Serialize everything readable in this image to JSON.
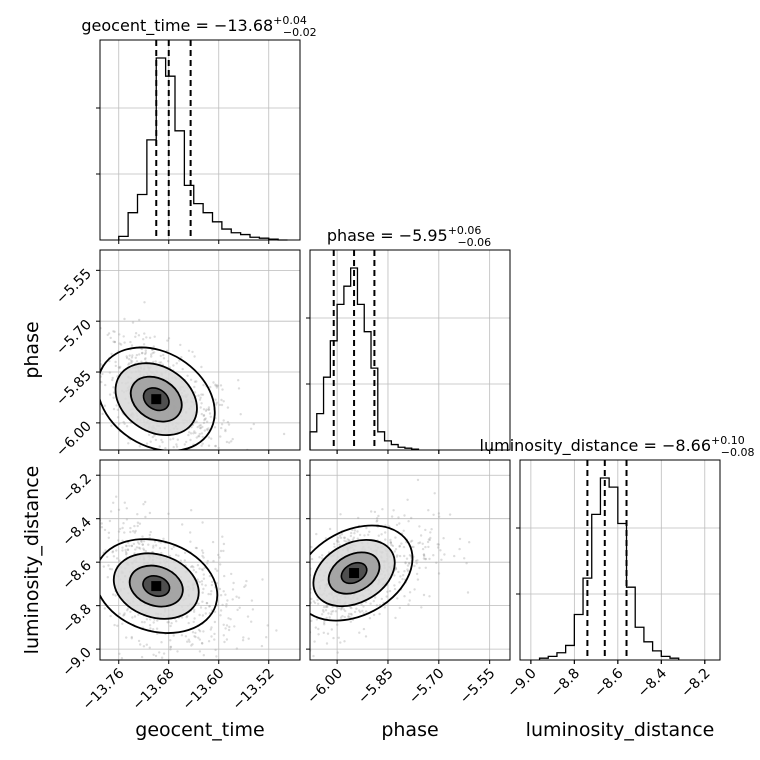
{
  "chart_data": {
    "type": "corner",
    "parameters": [
      "geocent_time",
      "phase",
      "luminosity_distance"
    ],
    "titles": [
      {
        "name": "geocent_time",
        "median": "−13.68",
        "plus": "+0.04",
        "minus": "−0.02"
      },
      {
        "name": "phase",
        "median": "−5.95",
        "plus": "+0.06",
        "minus": "−0.06"
      },
      {
        "name": "luminosity_distance",
        "median": "−8.66",
        "plus": "+0.10",
        "minus": "−0.08"
      }
    ],
    "axis_labels": {
      "x": [
        "geocent_time",
        "phase",
        "luminosity_distance"
      ],
      "y": [
        "phase",
        "luminosity_distance"
      ]
    },
    "ranges": [
      [
        -13.79,
        -13.47
      ],
      [
        -6.08,
        -5.49
      ],
      [
        -9.05,
        -8.13
      ]
    ],
    "ticks": {
      "geocent_time": {
        "values": [
          -13.76,
          -13.68,
          -13.6,
          -13.52
        ],
        "labels": [
          "−13.76",
          "−13.68",
          "−13.60",
          "−13.52"
        ]
      },
      "phase": {
        "values": [
          -6.0,
          -5.85,
          -5.7,
          -5.55
        ],
        "labels": [
          "−6.00",
          "−5.85",
          "−5.70",
          "−5.55"
        ]
      },
      "luminosity_distance": {
        "values": [
          -9.0,
          -8.8,
          -8.6,
          -8.4,
          -8.2
        ],
        "labels": [
          "−9.0",
          "−8.8",
          "−8.6",
          "−8.4",
          "−8.2"
        ]
      }
    },
    "quantiles": {
      "geocent_time": [
        -13.7,
        -13.68,
        -13.645
      ],
      "phase": [
        -6.01,
        -5.95,
        -5.89
      ],
      "luminosity_distance": [
        -8.74,
        -8.66,
        -8.56
      ]
    },
    "histograms": {
      "geocent_time": {
        "edges": [
          -13.76,
          -13.745,
          -13.73,
          -13.715,
          -13.7,
          -13.685,
          -13.67,
          -13.655,
          -13.64,
          -13.625,
          -13.61,
          -13.595,
          -13.58,
          -13.565,
          -13.55,
          -13.535,
          -13.52,
          -13.505,
          -13.49
        ],
        "counts": [
          0.02,
          0.15,
          0.25,
          0.55,
          1.0,
          0.9,
          0.6,
          0.3,
          0.2,
          0.15,
          0.1,
          0.06,
          0.04,
          0.03,
          0.015,
          0.01,
          0.005,
          0.0
        ]
      },
      "phase": {
        "edges": [
          -6.08,
          -6.06,
          -6.04,
          -6.02,
          -6.0,
          -5.98,
          -5.96,
          -5.94,
          -5.92,
          -5.9,
          -5.88,
          -5.86,
          -5.84,
          -5.82,
          -5.8,
          -5.78,
          -5.76
        ],
        "counts": [
          0.1,
          0.2,
          0.4,
          0.6,
          0.8,
          0.9,
          1.0,
          0.8,
          0.65,
          0.45,
          0.1,
          0.05,
          0.03,
          0.015,
          0.01,
          0.005
        ]
      },
      "luminosity_distance": {
        "edges": [
          -8.96,
          -8.92,
          -8.88,
          -8.84,
          -8.8,
          -8.76,
          -8.72,
          -8.68,
          -8.64,
          -8.6,
          -8.56,
          -8.52,
          -8.48,
          -8.44,
          -8.4,
          -8.36,
          -8.32
        ],
        "counts": [
          0.01,
          0.02,
          0.04,
          0.08,
          0.25,
          0.45,
          0.8,
          1.0,
          0.95,
          0.75,
          0.4,
          0.18,
          0.1,
          0.05,
          0.02,
          0.01
        ]
      }
    },
    "density_peaks": {
      "geocent_time_vs_phase": [
        -13.7,
        -5.93
      ],
      "geocent_time_vs_luminosity_distance": [
        -13.7,
        -8.71
      ],
      "phase_vs_luminosity_distance": [
        -5.95,
        -8.65
      ]
    },
    "colors": {
      "line": "#000000",
      "scatter": "#9a9a9a",
      "grid": "#bcbcbc"
    }
  }
}
